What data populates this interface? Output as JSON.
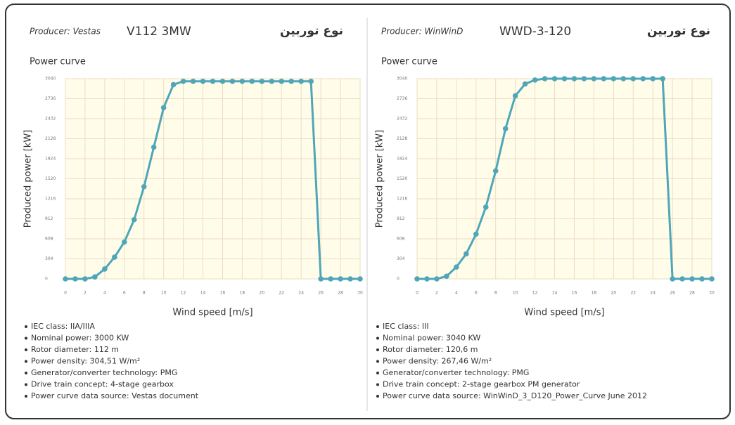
{
  "panels": [
    {
      "producer": "Producer: Vestas",
      "model": "V112 3MW",
      "type_label": "نوع توربين",
      "specs": [
        "IEC class: IIA/IIIA",
        "Nominal power: 3000 KW",
        "Rotor diameter: 112 m",
        "Power density: 304,51 W/m²",
        "Generator/converter technology: PMG",
        "Drive train concept: 4-stage gearbox",
        "Power curve data source: Vestas document"
      ]
    },
    {
      "producer": "Producer: WinWinD",
      "model": "WWD-3-120",
      "type_label": "نوع توربين",
      "specs": [
        "IEC class: III",
        "Nominal power: 3040 KW",
        "Rotor diameter: 120,6 m",
        "Power density: 267,46 W/m²",
        "Generator/converter technology: PMG",
        "Drive train concept: 2-stage gearbox PM generator",
        "Power curve data source: WinWinD_3_D120_Power_Curve June 2012"
      ]
    }
  ],
  "chart_data": [
    {
      "type": "line",
      "title": "Power curve",
      "x_label": "Wind speed [m/s]",
      "y_label": "Produced power [kW]",
      "x": [
        0,
        1,
        2,
        3,
        4,
        5,
        6,
        7,
        8,
        9,
        10,
        11,
        12,
        13,
        14,
        15,
        16,
        17,
        18,
        19,
        20,
        21,
        22,
        23,
        24,
        25,
        26,
        27,
        28,
        29,
        30
      ],
      "values": [
        0,
        0,
        0,
        30,
        150,
        330,
        560,
        900,
        1400,
        2000,
        2600,
        2950,
        3000,
        3000,
        3000,
        3000,
        3000,
        3000,
        3000,
        3000,
        3000,
        3000,
        3000,
        3000,
        3000,
        3000,
        0,
        0,
        0,
        0,
        0
      ],
      "color": "#4fa6b8",
      "xlim": [
        0,
        30
      ],
      "ylim": [
        0,
        3040
      ],
      "xticks": [
        0,
        2,
        4,
        6,
        8,
        10,
        12,
        14,
        16,
        18,
        20,
        22,
        24,
        26,
        28,
        30
      ],
      "yticks": [
        0,
        304,
        608,
        912,
        1216,
        1520,
        1824,
        2128,
        2432,
        2736,
        3040
      ],
      "grid": true
    },
    {
      "type": "line",
      "title": "Power curve",
      "x_label": "Wind speed [m/s]",
      "y_label": "Produced power [kW]",
      "x": [
        0,
        1,
        2,
        3,
        4,
        5,
        6,
        7,
        8,
        9,
        10,
        11,
        12,
        13,
        14,
        15,
        16,
        17,
        18,
        19,
        20,
        21,
        22,
        23,
        24,
        25,
        26,
        27,
        28,
        29,
        30
      ],
      "values": [
        0,
        0,
        0,
        40,
        180,
        380,
        680,
        1090,
        1640,
        2280,
        2780,
        2960,
        3020,
        3040,
        3040,
        3040,
        3040,
        3040,
        3040,
        3040,
        3040,
        3040,
        3040,
        3040,
        3040,
        3040,
        0,
        0,
        0,
        0,
        0
      ],
      "color": "#4fa6b8",
      "xlim": [
        0,
        30
      ],
      "ylim": [
        0,
        3040
      ],
      "xticks": [
        0,
        2,
        4,
        6,
        8,
        10,
        12,
        14,
        16,
        18,
        20,
        22,
        24,
        26,
        28,
        30
      ],
      "yticks": [
        0,
        304,
        608,
        912,
        1216,
        1520,
        1824,
        2128,
        2432,
        2736,
        3040
      ],
      "grid": true
    }
  ]
}
